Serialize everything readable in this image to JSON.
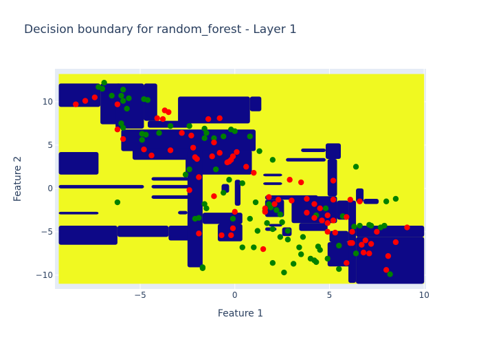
{
  "chart_data": {
    "type": "scatter",
    "title": "Decision boundary for random_forest - Layer 1",
    "xlabel": "Feature 1",
    "ylabel": "Feature 2",
    "xlim": [
      -9.5,
      10.1
    ],
    "ylim": [
      -11.6,
      13.8
    ],
    "xticks": [
      -5,
      0,
      5,
      10
    ],
    "yticks": [
      -10,
      -5,
      0,
      5,
      10
    ],
    "xtick_labels": [
      "−5",
      "0",
      "5",
      "10"
    ],
    "ytick_labels": [
      "−10",
      "−5",
      "0",
      "5",
      "10"
    ],
    "grid": true,
    "legend": "none",
    "background": {
      "type": "heatmap",
      "x_range": [
        -9.3,
        10
      ],
      "y_range": [
        -11,
        13.2
      ],
      "region_colors": {
        "class_0": "#0d0887",
        "class_1": "#f0f921"
      },
      "class_0_regions": [
        [
          -9.3,
          -7.1,
          9.4,
          12.1
        ],
        [
          -7.1,
          -6.0,
          7.4,
          12.1
        ],
        [
          -6.3,
          -4.8,
          6.9,
          12.1
        ],
        [
          -4.8,
          -4.1,
          7.8,
          12.1
        ],
        [
          -3.0,
          0.8,
          7.5,
          10.6
        ],
        [
          0.8,
          1.4,
          8.9,
          10.6
        ],
        [
          -4.6,
          -2.3,
          7.0,
          7.8
        ],
        [
          -6.0,
          1.1,
          4.3,
          6.8
        ],
        [
          -2.6,
          0.9,
          1.6,
          4.4
        ],
        [
          -5.4,
          -1.7,
          3.3,
          4.6
        ],
        [
          -9.3,
          -7.2,
          1.6,
          4.2
        ],
        [
          -9.3,
          -4.8,
          0.0,
          0.4
        ],
        [
          -9.3,
          -7.2,
          -3.0,
          -2.7
        ],
        [
          -9.3,
          -6.2,
          -6.5,
          -4.3
        ],
        [
          -6.2,
          -3.5,
          -5.6,
          -4.3
        ],
        [
          -3.5,
          -1.9,
          -6.0,
          -4.3
        ],
        [
          -4.4,
          -2.2,
          0.9,
          1.3
        ],
        [
          -4.4,
          -2.2,
          0.0,
          0.4
        ],
        [
          -4.4,
          -2.2,
          -1.2,
          -0.8
        ],
        [
          -3.0,
          -2.5,
          -3.0,
          -2.6
        ],
        [
          -2.5,
          -1.7,
          -9.1,
          4.4
        ],
        [
          -0.7,
          -0.3,
          -0.5,
          0.5
        ],
        [
          -1.7,
          0.4,
          -4.1,
          -2.8
        ],
        [
          -0.9,
          0.4,
          -6.1,
          -4.1
        ],
        [
          0.0,
          0.3,
          -2.0,
          1.0
        ],
        [
          1.6,
          4.4,
          -1.3,
          -0.8
        ],
        [
          1.6,
          2.6,
          -3.3,
          -1.3
        ],
        [
          1.5,
          2.5,
          1.4,
          1.7
        ],
        [
          1.5,
          2.5,
          0.4,
          0.7
        ],
        [
          1.8,
          2.5,
          -4.4,
          -4.1
        ],
        [
          2.5,
          3.0,
          -5.5,
          -4.5
        ],
        [
          1.6,
          2.2,
          -4.9,
          -4.5
        ],
        [
          3.5,
          4.8,
          4.2,
          4.6
        ],
        [
          2.7,
          4.8,
          3.1,
          3.5
        ],
        [
          4.8,
          5.6,
          3.4,
          5.2
        ],
        [
          4.9,
          5.4,
          -0.9,
          3.4
        ],
        [
          3.0,
          5.4,
          -4.0,
          -0.9
        ],
        [
          3.4,
          4.9,
          -4.9,
          -4.0
        ],
        [
          5.4,
          6.0,
          -3.6,
          -1.4
        ],
        [
          5.0,
          6.0,
          -6.2,
          -4.9
        ],
        [
          4.9,
          6.1,
          -9.0,
          -6.2
        ],
        [
          6.0,
          6.4,
          -10.9,
          -1.4
        ],
        [
          6.4,
          10.0,
          -5.6,
          -4.3
        ],
        [
          6.4,
          10.0,
          -11.0,
          -5.6
        ],
        [
          6.4,
          6.8,
          -1.6,
          0.0
        ],
        [
          6.8,
          7.6,
          -1.8,
          -1.2
        ]
      ]
    },
    "series": [
      {
        "color": "#008000",
        "points": [
          [
            -7.2,
            11.7
          ],
          [
            -6.9,
            12.2
          ],
          [
            -7.0,
            11.5
          ],
          [
            -6.5,
            10.7
          ],
          [
            -6.0,
            10.7
          ],
          [
            -5.9,
            11.4
          ],
          [
            -5.9,
            10.1
          ],
          [
            -5.6,
            10.4
          ],
          [
            -5.7,
            9.2
          ],
          [
            -4.8,
            10.3
          ],
          [
            -4.6,
            10.2
          ],
          [
            -6.0,
            7.5
          ],
          [
            -5.9,
            7.0
          ],
          [
            -4.9,
            6.3
          ],
          [
            -4.7,
            6.2
          ],
          [
            -4.9,
            5.6
          ],
          [
            -4.0,
            6.4
          ],
          [
            -3.4,
            7.2
          ],
          [
            -2.4,
            7.2
          ],
          [
            -1.6,
            6.9
          ],
          [
            -1.5,
            6.4
          ],
          [
            -1.1,
            5.8
          ],
          [
            -1.6,
            5.8
          ],
          [
            -0.6,
            6.0
          ],
          [
            -0.2,
            6.8
          ],
          [
            0.0,
            6.6
          ],
          [
            0.8,
            6.0
          ],
          [
            1.3,
            4.3
          ],
          [
            2.0,
            3.3
          ],
          [
            -2.4,
            2.2
          ],
          [
            -1.0,
            2.2
          ],
          [
            -2.6,
            1.6
          ],
          [
            -0.3,
            1.0
          ],
          [
            0.4,
            0.6
          ],
          [
            -0.6,
            -0.5
          ],
          [
            -6.2,
            -1.6
          ],
          [
            -1.6,
            -1.8
          ],
          [
            -1.5,
            -2.3
          ],
          [
            -1.9,
            -3.4
          ],
          [
            -2.1,
            -3.5
          ],
          [
            1.1,
            -1.6
          ],
          [
            1.8,
            -1.8
          ],
          [
            1.9,
            -2.2
          ],
          [
            2.2,
            -2.5
          ],
          [
            1.6,
            -2.6
          ],
          [
            2.4,
            -3.0
          ],
          [
            -0.1,
            -3.5
          ],
          [
            0.8,
            -3.5
          ],
          [
            1.7,
            -4.0
          ],
          [
            1.2,
            -4.9
          ],
          [
            2.0,
            -4.7
          ],
          [
            2.5,
            -3.9
          ],
          [
            2.8,
            -4.9
          ],
          [
            3.6,
            -5.6
          ],
          [
            2.8,
            -5.9
          ],
          [
            2.4,
            -5.6
          ],
          [
            3.4,
            -6.8
          ],
          [
            4.2,
            -8.3
          ],
          [
            4.0,
            -8.1
          ],
          [
            3.5,
            -7.6
          ],
          [
            2.0,
            -8.6
          ],
          [
            3.1,
            -8.7
          ],
          [
            1.0,
            -6.8
          ],
          [
            0.4,
            -6.8
          ],
          [
            2.6,
            -9.7
          ],
          [
            -1.7,
            -9.1
          ],
          [
            -1.7,
            -9.2
          ],
          [
            4.3,
            -3.1
          ],
          [
            4.8,
            -2.3
          ],
          [
            5.7,
            -3.2
          ],
          [
            5.5,
            -6.6
          ],
          [
            4.9,
            -8.1
          ],
          [
            4.3,
            -8.5
          ],
          [
            5.5,
            -9.3
          ],
          [
            6.3,
            -4.4
          ],
          [
            6.6,
            -4.3
          ],
          [
            6.4,
            2.5
          ],
          [
            7.1,
            -4.2
          ],
          [
            7.2,
            -4.3
          ],
          [
            7.9,
            -4.3
          ],
          [
            8.0,
            -1.5
          ],
          [
            8.5,
            -1.2
          ],
          [
            8.2,
            -9.9
          ],
          [
            7.7,
            -4.5
          ],
          [
            6.4,
            -7.5
          ],
          [
            4.5,
            -7.1
          ],
          [
            4.4,
            -6.7
          ]
        ]
      },
      {
        "color": "#ff0000",
        "points": [
          [
            -8.4,
            9.7
          ],
          [
            -7.9,
            10.1
          ],
          [
            -7.4,
            10.5
          ],
          [
            -6.2,
            9.7
          ],
          [
            -3.7,
            9.0
          ],
          [
            -3.5,
            8.8
          ],
          [
            -4.1,
            8.1
          ],
          [
            -3.8,
            8.0
          ],
          [
            -1.4,
            8.0
          ],
          [
            -0.8,
            8.1
          ],
          [
            -6.2,
            6.8
          ],
          [
            -5.9,
            5.7
          ],
          [
            -2.8,
            6.4
          ],
          [
            -2.3,
            6.1
          ],
          [
            -1.1,
            5.3
          ],
          [
            -4.8,
            4.5
          ],
          [
            -3.4,
            4.4
          ],
          [
            -4.4,
            3.8
          ],
          [
            -2.2,
            4.7
          ],
          [
            -2.1,
            3.6
          ],
          [
            -2.0,
            3.4
          ],
          [
            -1.2,
            3.7
          ],
          [
            -0.8,
            4.1
          ],
          [
            -0.3,
            3.1
          ],
          [
            -0.4,
            3.0
          ],
          [
            -0.2,
            3.3
          ],
          [
            -0.1,
            3.7
          ],
          [
            0.1,
            4.2
          ],
          [
            0.6,
            2.5
          ],
          [
            1.0,
            1.8
          ],
          [
            -2.4,
            -0.2
          ],
          [
            -1.9,
            1.3
          ],
          [
            -1.1,
            -0.9
          ],
          [
            -1.9,
            -5.2
          ],
          [
            -0.7,
            -5.4
          ],
          [
            -0.2,
            -5.4
          ],
          [
            -0.1,
            -4.6
          ],
          [
            0.0,
            -2.7
          ],
          [
            1.6,
            -2.3
          ],
          [
            1.6,
            -2.7
          ],
          [
            1.8,
            -1.0
          ],
          [
            2.3,
            -1.3
          ],
          [
            2.1,
            -1.8
          ],
          [
            1.5,
            -7.0
          ],
          [
            2.9,
            1.0
          ],
          [
            3.5,
            0.7
          ],
          [
            3.0,
            -1.4
          ],
          [
            3.8,
            -1.2
          ],
          [
            4.2,
            -1.8
          ],
          [
            4.5,
            -2.3
          ],
          [
            3.8,
            -2.8
          ],
          [
            4.2,
            -3.4
          ],
          [
            4.6,
            -3.7
          ],
          [
            4.9,
            -4.0
          ],
          [
            4.9,
            -3.1
          ],
          [
            5.2,
            -3.7
          ],
          [
            4.9,
            -5.0
          ],
          [
            5.3,
            -5.1
          ],
          [
            5.2,
            -1.3
          ],
          [
            5.2,
            0.9
          ],
          [
            5.9,
            -3.3
          ],
          [
            6.1,
            -1.3
          ],
          [
            6.2,
            -5.0
          ],
          [
            6.1,
            -6.3
          ],
          [
            6.6,
            -1.5
          ],
          [
            6.9,
            -6.0
          ],
          [
            6.7,
            -6.5
          ],
          [
            7.2,
            -6.4
          ],
          [
            6.8,
            -7.4
          ],
          [
            7.1,
            -7.5
          ],
          [
            7.5,
            -5.0
          ],
          [
            8.1,
            -7.8
          ],
          [
            8.5,
            -6.2
          ],
          [
            8.0,
            -9.4
          ],
          [
            9.1,
            -4.5
          ],
          [
            5.9,
            -8.6
          ],
          [
            6.2,
            -6.3
          ]
        ]
      }
    ]
  }
}
